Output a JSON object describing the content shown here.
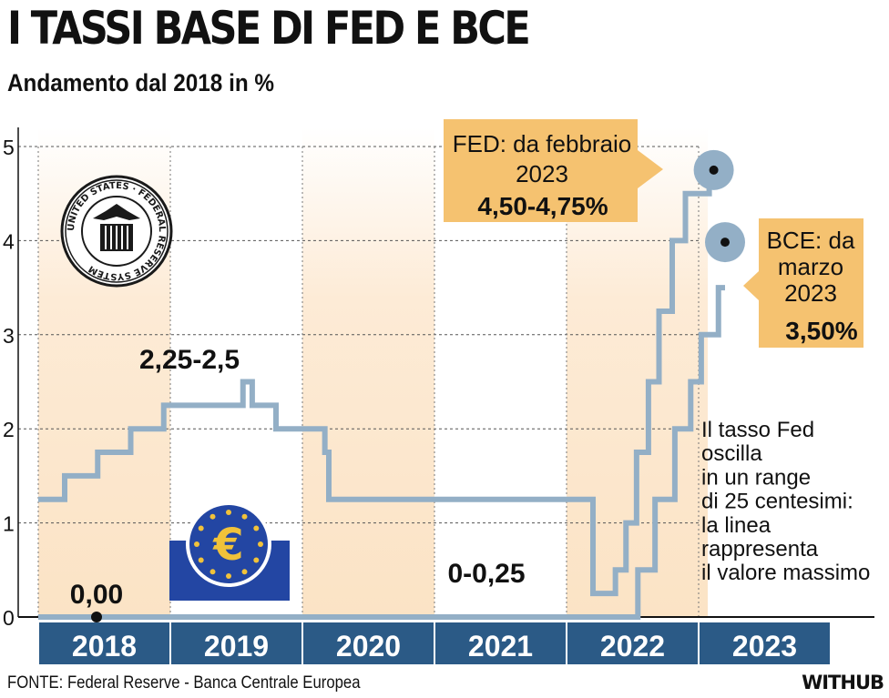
{
  "header": {
    "title": "I TASSI BASE DI FED E BCE",
    "subtitle": "Andamento dal 2018 in %"
  },
  "footer": {
    "source": "FONTE: Federal Reserve - Banca Centrale Europea",
    "brand": "WITHUB"
  },
  "logos": {
    "fed_seal_text": "UNITED STATES · FEDERAL RESERVE SYSTEM",
    "ecb_symbol": "€"
  },
  "colors": {
    "line": "#93afc6",
    "band": "#fbe3c5",
    "callout": "#f5c270",
    "year_bar": "#2b5a86",
    "ecb_blue": "#2346a3",
    "ecb_gold": "#f1c23a"
  },
  "chart_data": {
    "type": "line",
    "title": "I TASSI BASE DI FED E BCE",
    "subtitle": "Andamento dal 2018 in %",
    "xlabel": "",
    "ylabel": "%",
    "ylim": [
      0,
      5
    ],
    "yticks": [
      "0",
      "1",
      "2",
      "3",
      "4",
      "5"
    ],
    "years": [
      "2018",
      "2019",
      "2020",
      "2021",
      "2022",
      "2023"
    ],
    "series": [
      {
        "name": "FED",
        "x": [
          2018.0,
          2018.2,
          2018.45,
          2018.7,
          2018.95,
          2019.55,
          2019.62,
          2019.8,
          2020.17,
          2020.2,
          2022.2,
          2022.37,
          2022.45,
          2022.53,
          2022.62,
          2022.7,
          2022.8,
          2022.9,
          2023.08
        ],
        "values": [
          1.25,
          1.5,
          1.75,
          2.0,
          2.25,
          2.5,
          2.25,
          2.0,
          1.75,
          1.25,
          0.25,
          0.5,
          1.0,
          1.75,
          2.5,
          3.25,
          4.0,
          4.5,
          4.75
        ]
      },
      {
        "name": "BCE",
        "x": [
          2018.0,
          2022.54,
          2022.67,
          2022.82,
          2022.94,
          2023.02,
          2023.15,
          2023.2
        ],
        "values": [
          0.0,
          0.5,
          1.25,
          2.0,
          2.5,
          3.0,
          3.5,
          3.5
        ]
      }
    ],
    "annotations": [
      {
        "id": "fed_start",
        "text": "2,25-2,5"
      },
      {
        "id": "zero",
        "text": "0,00"
      },
      {
        "id": "fed_zero",
        "text": "0-0,25"
      },
      {
        "id": "note",
        "lines": [
          "Il tasso Fed",
          "oscilla",
          "in un range",
          "di 25 centesimi:",
          "la linea",
          " rappresenta",
          "il valore massimo"
        ]
      }
    ],
    "callouts": [
      {
        "id": "fed",
        "lines": [
          "FED: da febbraio",
          "2023"
        ],
        "value": "4,50-4,75%"
      },
      {
        "id": "bce",
        "lines": [
          "BCE: da",
          "marzo",
          "2023"
        ],
        "value": "3,50%"
      }
    ]
  }
}
